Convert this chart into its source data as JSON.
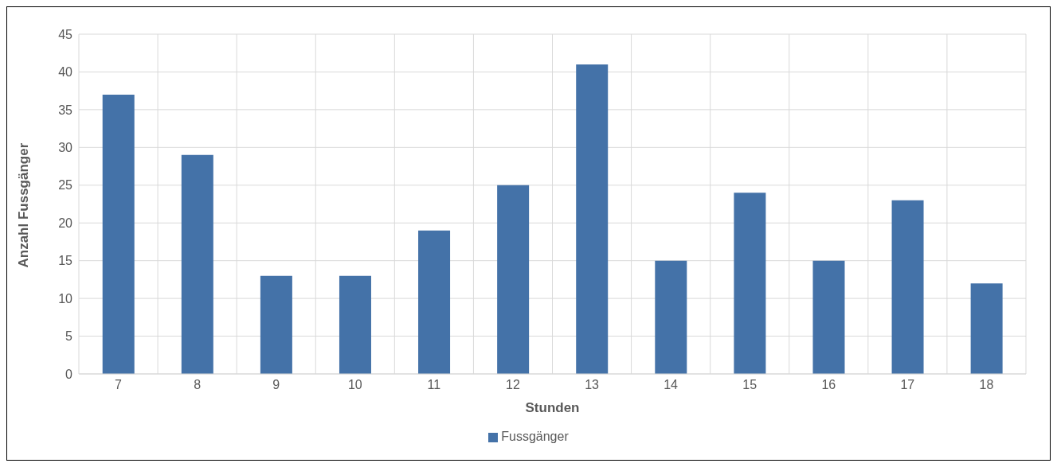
{
  "chart_data": {
    "type": "bar",
    "xlabel": "Stunden",
    "ylabel": "Anzahl Fussgänger",
    "categories": [
      "7",
      "8",
      "9",
      "10",
      "11",
      "12",
      "13",
      "14",
      "15",
      "16",
      "17",
      "18"
    ],
    "series": [
      {
        "name": "Fussgänger",
        "color": "#4472a8",
        "values": [
          37,
          29,
          13,
          13,
          19,
          25,
          41,
          15,
          24,
          15,
          23,
          12
        ]
      }
    ],
    "ylim": [
      0,
      45
    ],
    "yticks": [
      0,
      5,
      10,
      15,
      20,
      25,
      30,
      35,
      40,
      45
    ],
    "grid": true,
    "legend": "bottom"
  }
}
